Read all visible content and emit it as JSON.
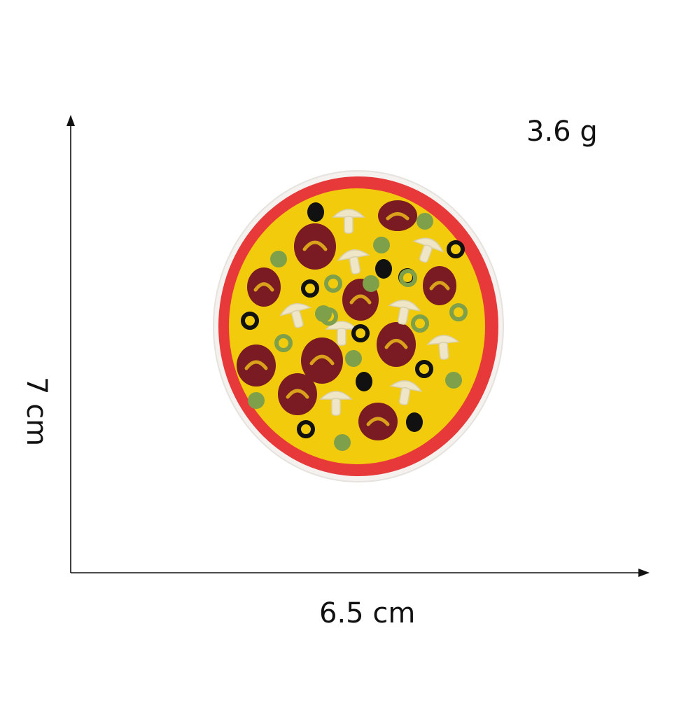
{
  "labels": {
    "weight": "3.6 g",
    "height": "7 cm",
    "width": "6.5 cm"
  },
  "product": {
    "type": "embroidered pizza patch",
    "colors": {
      "border": "#e8393a",
      "cheese": "#f2cc0c",
      "pepperoni": "#7a1a22",
      "olive_black": "#111111",
      "pepper_green": "#7fa04a",
      "mushroom": "#efe6c8",
      "backing": "#f4f1ee"
    },
    "toppings": [
      "pepperoni",
      "mushroom",
      "black-olive",
      "green-olive",
      "green-pepper"
    ]
  },
  "icons": [
    "arrow-up-icon",
    "arrow-right-icon"
  ]
}
